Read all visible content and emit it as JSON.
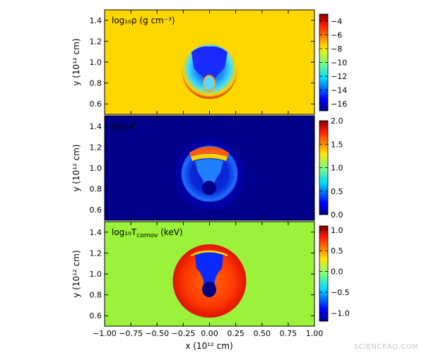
{
  "watermark": "SCIENCEAQ.COM",
  "chart_data": [
    {
      "type": "heatmap",
      "label": "log₁₀ρ (g cm⁻³)",
      "ylabel": "y (10¹² cm)",
      "xlim": [
        -1.0,
        1.0
      ],
      "ylim": [
        0.5,
        1.5
      ],
      "yticks": [
        "0.6",
        "0.8",
        "1.0",
        "1.2",
        "1.4"
      ],
      "ytick_values": [
        0.6,
        0.8,
        1.0,
        1.2,
        1.4
      ],
      "colorbar": {
        "ticks": [
          "−4",
          "−6",
          "−8",
          "−10",
          "−12",
          "−14",
          "−16"
        ],
        "tick_values": [
          -4,
          -6,
          -8,
          -10,
          -12,
          -14,
          -16
        ],
        "range": [
          -17,
          -3
        ],
        "colormap": "jet"
      },
      "background_color": "#ffd700",
      "features": {
        "dense_dome": {
          "center": [
            0.0,
            0.0
          ],
          "radius": 0.95,
          "color": "#b30000"
        },
        "jet_cocoon": {
          "center": [
            0.0,
            0.96
          ],
          "radius": 0.26
        }
      }
    },
    {
      "type": "heatmap",
      "label": "log₁₀Γ",
      "ylabel": "y (10¹² cm)",
      "xlim": [
        -1.0,
        1.0
      ],
      "ylim": [
        0.5,
        1.5
      ],
      "yticks": [
        "0.6",
        "0.8",
        "1.0",
        "1.2",
        "1.4"
      ],
      "ytick_values": [
        0.6,
        0.8,
        1.0,
        1.2,
        1.4
      ],
      "colorbar": {
        "ticks": [
          "2.0",
          "1.5",
          "1.0",
          "0.5",
          "0.0"
        ],
        "tick_values": [
          2.0,
          1.5,
          1.0,
          0.5,
          0.0
        ],
        "range": [
          0.0,
          2.0
        ],
        "colormap": "jet"
      },
      "background_color": "#00008b",
      "features": {
        "jet_cocoon": {
          "center": [
            0.0,
            0.96
          ],
          "radius": 0.26
        }
      }
    },
    {
      "type": "heatmap",
      "label": "log₁₀T",
      "label_subscript": "comov",
      "label_unit": " (keV)",
      "ylabel": "y (10¹² cm)",
      "xlabel": "x (10¹² cm)",
      "xlim": [
        -1.0,
        1.0
      ],
      "ylim": [
        0.5,
        1.5
      ],
      "xticks": [
        "−1.00",
        "−0.75",
        "−0.50",
        "−0.25",
        "0.00",
        "0.25",
        "0.50",
        "0.75",
        "1.00"
      ],
      "xtick_values": [
        -1.0,
        -0.75,
        -0.5,
        -0.25,
        0.0,
        0.25,
        0.5,
        0.75,
        1.0
      ],
      "yticks": [
        "0.6",
        "0.8",
        "1.0",
        "1.2",
        "1.4"
      ],
      "ytick_values": [
        0.6,
        0.8,
        1.0,
        1.2,
        1.4
      ],
      "colorbar": {
        "ticks": [
          "1.0",
          "0.5",
          "0.0",
          "−0.5",
          "−1.0"
        ],
        "tick_values": [
          1.0,
          0.5,
          0.0,
          -0.5,
          -1.0
        ],
        "range": [
          -1.2,
          1.1
        ],
        "colormap": "jet"
      },
      "background_color": "#9cf23a",
      "features": {
        "jet_cocoon": {
          "center": [
            0.0,
            0.96
          ],
          "radius": 0.26
        }
      }
    }
  ]
}
